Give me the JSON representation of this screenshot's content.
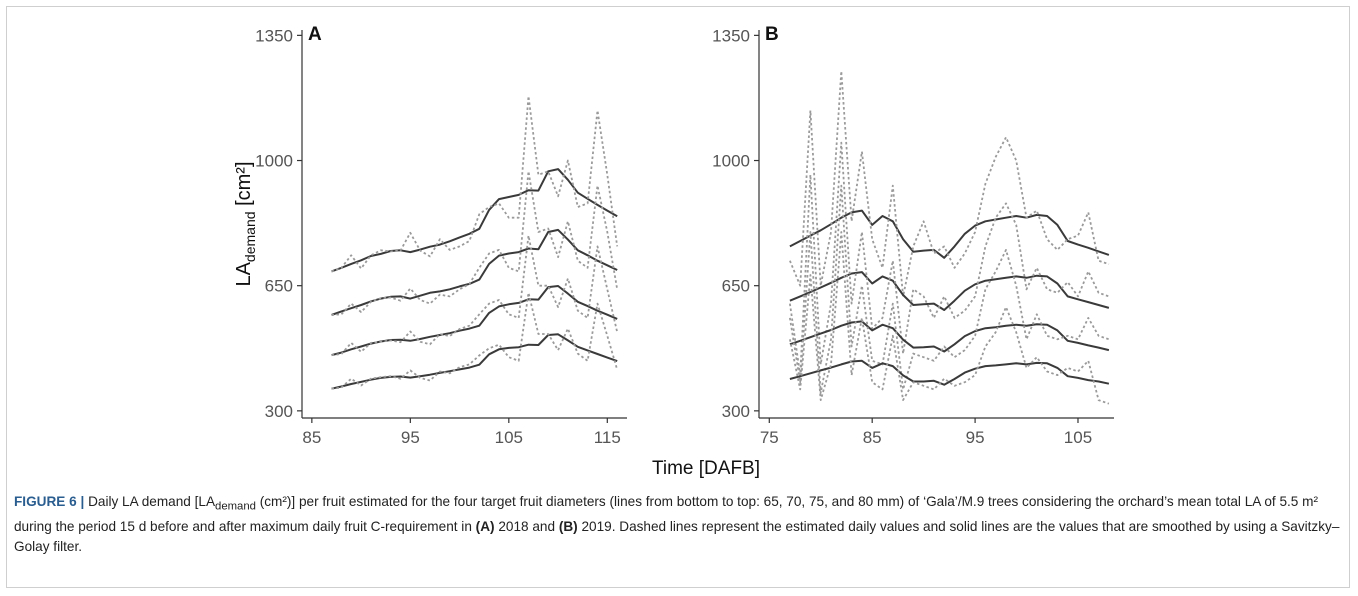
{
  "chart_data": [
    {
      "panel_label": "A",
      "type": "line",
      "xlim": [
        84,
        117
      ],
      "ylim": [
        280,
        1365
      ],
      "xticks": [
        85,
        95,
        105,
        115
      ],
      "yticks": [
        300,
        650,
        1000,
        1350
      ],
      "ylabel_main": "LA",
      "ylabel_sub": "demand",
      "ylabel_unit": " [cm²]",
      "x": [
        87,
        88,
        89,
        90,
        91,
        92,
        93,
        94,
        95,
        96,
        97,
        98,
        99,
        100,
        101,
        102,
        103,
        104,
        105,
        106,
        107,
        108,
        109,
        110,
        111,
        112,
        113,
        114,
        115,
        116
      ],
      "series": [
        {
          "name": "80 mm",
          "style": "smoothed",
          "values": [
            690,
            700,
            711,
            721,
            733,
            739,
            747,
            749,
            744,
            751,
            759,
            765,
            774,
            785,
            795,
            809,
            862,
            892,
            898,
            904,
            917,
            916,
            970,
            976,
            946,
            910,
            893,
            876,
            860,
            844
          ]
        },
        {
          "name": "80 mm",
          "style": "daily",
          "values": [
            690,
            700,
            735,
            698,
            735,
            749,
            746,
            748,
            798,
            748,
            732,
            780,
            750,
            760,
            775,
            850,
            870,
            880,
            840,
            840,
            1180,
            960,
            970,
            900,
            1000,
            870,
            880,
            1140,
            960,
            760
          ]
        },
        {
          "name": "75 mm",
          "style": "smoothed",
          "values": [
            568,
            578,
            587,
            596,
            606,
            614,
            619,
            620,
            614,
            622,
            630,
            634,
            640,
            648,
            655,
            667,
            711,
            734,
            740,
            744,
            754,
            752,
            800,
            806,
            779,
            749,
            735,
            720,
            707,
            694
          ]
        },
        {
          "name": "75 mm",
          "style": "daily",
          "values": [
            568,
            570,
            600,
            576,
            605,
            615,
            617,
            608,
            642,
            610,
            600,
            625,
            620,
            640,
            655,
            700,
            740,
            750,
            700,
            690,
            970,
            800,
            810,
            730,
            830,
            720,
            700,
            930,
            800,
            640
          ]
        },
        {
          "name": "70 mm",
          "style": "smoothed",
          "values": [
            456,
            463,
            472,
            480,
            488,
            494,
            498,
            499,
            496,
            501,
            507,
            512,
            517,
            524,
            530,
            538,
            574,
            592,
            598,
            602,
            612,
            611,
            646,
            649,
            628,
            605,
            593,
            580,
            569,
            557
          ]
        },
        {
          "name": "70 mm",
          "style": "daily",
          "values": [
            456,
            459,
            490,
            465,
            490,
            493,
            497,
            492,
            522,
            493,
            486,
            515,
            509,
            529,
            538,
            570,
            600,
            610,
            570,
            560,
            790,
            650,
            650,
            590,
            670,
            580,
            560,
            760,
            640,
            520
          ]
        },
        {
          "name": "65 mm",
          "style": "smoothed",
          "values": [
            362,
            368,
            375,
            381,
            387,
            392,
            395,
            396,
            393,
            397,
            401,
            406,
            411,
            416,
            421,
            429,
            458,
            472,
            476,
            478,
            485,
            484,
            512,
            514,
            497,
            479,
            469,
            459,
            449,
            439
          ]
        },
        {
          "name": "65 mm",
          "style": "daily",
          "values": [
            362,
            365,
            390,
            371,
            390,
            394,
            397,
            390,
            413,
            392,
            385,
            410,
            405,
            422,
            430,
            455,
            475,
            485,
            450,
            440,
            630,
            515,
            515,
            470,
            530,
            460,
            440,
            600,
            510,
            415
          ]
        }
      ]
    },
    {
      "panel_label": "B",
      "type": "line",
      "xlim": [
        74,
        108.5
      ],
      "ylim": [
        280,
        1365
      ],
      "xticks": [
        75,
        85,
        95,
        105
      ],
      "yticks": [
        300,
        650,
        1000,
        1350
      ],
      "x": [
        77,
        78,
        79,
        80,
        81,
        82,
        83,
        84,
        85,
        86,
        87,
        88,
        89,
        90,
        91,
        92,
        93,
        94,
        95,
        96,
        97,
        98,
        99,
        100,
        101,
        102,
        103,
        104,
        105,
        106,
        107,
        108
      ],
      "series": [
        {
          "name": "80 mm",
          "style": "smoothed",
          "values": [
            760,
            775,
            790,
            805,
            822,
            840,
            855,
            860,
            820,
            845,
            830,
            780,
            745,
            748,
            750,
            728,
            760,
            795,
            818,
            830,
            835,
            840,
            845,
            840,
            848,
            845,
            820,
            775,
            765,
            756,
            746,
            736
          ]
        },
        {
          "name": "80 mm",
          "style": "daily",
          "values": [
            720,
            650,
            1140,
            650,
            800,
            1250,
            830,
            1025,
            780,
            700,
            930,
            620,
            760,
            830,
            740,
            760,
            700,
            740,
            800,
            935,
            1010,
            1065,
            1000,
            840,
            860,
            780,
            750,
            780,
            790,
            855,
            720,
            710
          ]
        },
        {
          "name": "75 mm",
          "style": "smoothed",
          "values": [
            608,
            620,
            632,
            645,
            658,
            672,
            684,
            688,
            656,
            676,
            664,
            624,
            596,
            598,
            600,
            582,
            608,
            636,
            654,
            664,
            668,
            672,
            676,
            672,
            678,
            676,
            656,
            620,
            612,
            604,
            596,
            588
          ]
        },
        {
          "name": "75 mm",
          "style": "daily",
          "values": [
            600,
            400,
            960,
            430,
            600,
            1050,
            600,
            800,
            530,
            560,
            720,
            460,
            640,
            620,
            560,
            620,
            560,
            580,
            620,
            760,
            840,
            880,
            820,
            640,
            700,
            640,
            630,
            660,
            620,
            690,
            630,
            620
          ]
        },
        {
          "name": "70 mm",
          "style": "smoothed",
          "values": [
            486,
            496,
            506,
            516,
            526,
            538,
            547,
            550,
            525,
            541,
            531,
            499,
            477,
            478,
            480,
            466,
            486,
            509,
            523,
            531,
            534,
            538,
            541,
            538,
            542,
            541,
            525,
            496,
            490,
            483,
            477,
            470
          ]
        },
        {
          "name": "70 mm",
          "style": "daily",
          "values": [
            560,
            380,
            800,
            350,
            500,
            930,
            480,
            650,
            440,
            430,
            600,
            360,
            460,
            450,
            440,
            480,
            450,
            470,
            510,
            640,
            690,
            750,
            650,
            500,
            570,
            510,
            500,
            510,
            500,
            560,
            510,
            500
          ]
        },
        {
          "name": "65 mm",
          "style": "smoothed",
          "values": [
            389,
            397,
            405,
            413,
            421,
            430,
            438,
            440,
            420,
            433,
            425,
            399,
            382,
            382,
            384,
            373,
            389,
            407,
            418,
            425,
            427,
            430,
            433,
            430,
            434,
            433,
            420,
            397,
            392,
            386,
            382,
            376
          ]
        },
        {
          "name": "65 mm",
          "style": "daily",
          "values": [
            500,
            360,
            680,
            330,
            430,
            800,
            400,
            560,
            380,
            360,
            510,
            330,
            380,
            370,
            360,
            390,
            370,
            380,
            400,
            480,
            520,
            590,
            520,
            420,
            450,
            410,
            400,
            420,
            410,
            440,
            330,
            320
          ]
        }
      ]
    }
  ],
  "xlabel": "Time [DAFB]",
  "caption": {
    "label": "FIGURE 6 |",
    "part1": "Daily LA demand [LA",
    "sub": "demand",
    "part2": " (cm²)] per fruit estimated for the four target fruit diameters (lines from bottom to top: 65, 70, 75, and 80 mm) of ‘Gala’/M.9 trees considering the orchard’s mean total LA of 5.5 m² during the period 15 d before and after maximum daily fruit C-requirement in ",
    "bold1": "(A)",
    "part3": " 2018 and ",
    "bold2": "(B)",
    "part4": " 2019. Dashed lines represent the estimated daily values and solid lines are the values that are smoothed by using a Savitzky–Golay filter."
  },
  "colors": {
    "smoothed": "#3a3a3a",
    "daily": "#9a9a9a",
    "axis": "#333333",
    "tick_text": "#555555",
    "caption_label": "#2a5d8f"
  }
}
